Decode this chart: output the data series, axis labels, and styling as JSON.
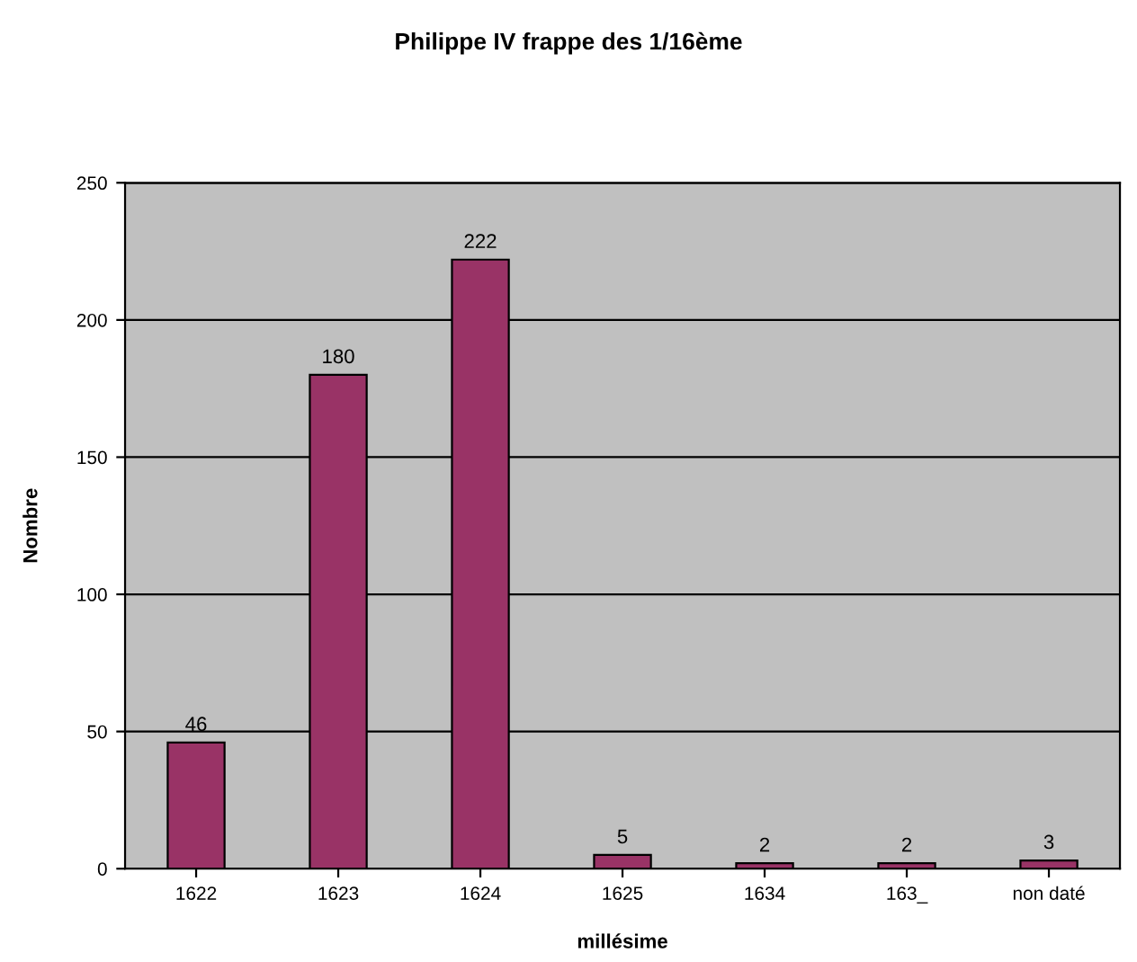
{
  "chart_data": {
    "type": "bar",
    "title": "Philippe IV frappe des 1/16ème",
    "xlabel": "millésime",
    "ylabel": "Nombre",
    "categories": [
      "1622",
      "1623",
      "1624",
      "1625",
      "1634",
      "163_",
      "non daté"
    ],
    "values": [
      46,
      180,
      222,
      5,
      2,
      2,
      3
    ],
    "color": "#993366",
    "ylim": [
      0,
      250
    ],
    "yticks": [
      0,
      50,
      100,
      150,
      200,
      250
    ],
    "grid": "y",
    "data_labels": true
  }
}
